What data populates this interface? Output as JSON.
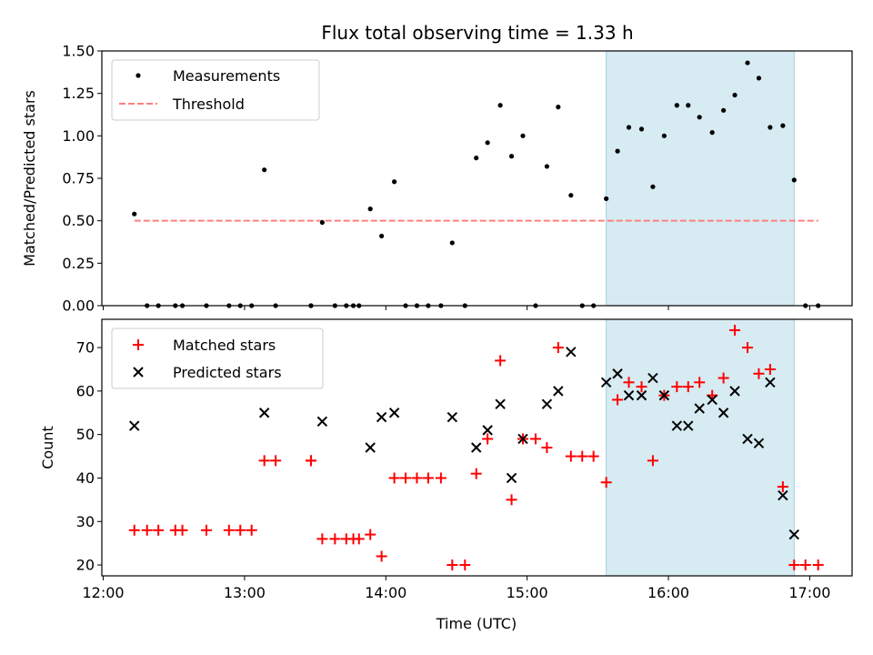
{
  "chart_data": [
    {
      "type": "scatter",
      "title": "Flux total observing time = 1.33 h",
      "xlabel": "",
      "ylabel": "Matched/Predicted stars",
      "xlim_hours": [
        11.99,
        17.3
      ],
      "ylim": [
        0,
        1.5
      ],
      "yticks": [
        0.0,
        0.25,
        0.5,
        0.75,
        1.0,
        1.25,
        1.5
      ],
      "ytick_labels": [
        "0.00",
        "0.25",
        "0.50",
        "0.75",
        "1.00",
        "1.25",
        "1.50"
      ],
      "shaded_region_hours": [
        15.56,
        16.89
      ],
      "threshold": {
        "value": 0.5,
        "x_range_hours": [
          12.22,
          17.06
        ],
        "color": "#ff7f7f"
      },
      "legend": {
        "position": "top-left",
        "entries": [
          "Measurements",
          "Threshold"
        ]
      },
      "series": [
        {
          "name": "Measurements",
          "color": "#000000",
          "marker": "dot",
          "x": [
            12.22,
            12.31,
            12.39,
            12.51,
            12.56,
            12.73,
            12.89,
            12.97,
            13.05,
            13.14,
            13.22,
            13.47,
            13.47,
            13.55,
            13.64,
            13.72,
            13.77,
            13.81,
            13.89,
            13.97,
            14.06,
            14.14,
            14.22,
            14.3,
            14.39,
            14.47,
            14.56,
            14.64,
            14.72,
            14.81,
            14.89,
            14.97,
            15.06,
            15.14,
            15.22,
            15.31,
            15.39,
            15.47,
            15.56,
            15.64,
            15.72,
            15.81,
            15.89,
            15.97,
            16.06,
            16.14,
            16.22,
            16.31,
            16.39,
            16.47,
            16.56,
            16.64,
            16.72,
            16.81,
            16.89,
            16.97,
            17.06
          ],
          "values": [
            0.54,
            0,
            0,
            0,
            0,
            0,
            0,
            0,
            0,
            0.8,
            0,
            0,
            0,
            0.49,
            0,
            0,
            0,
            0,
            0.57,
            0.41,
            0.73,
            0,
            0,
            0,
            0,
            0.37,
            0,
            0.87,
            0.96,
            1.18,
            0.88,
            1.0,
            0,
            0.82,
            1.17,
            0.65,
            0,
            0,
            0.63,
            0.91,
            1.05,
            1.04,
            0.7,
            1.0,
            1.18,
            1.18,
            1.11,
            1.02,
            1.15,
            1.24,
            1.43,
            1.34,
            1.05,
            1.06,
            0.74,
            0,
            0
          ]
        }
      ],
      "xticks_hours": [
        12,
        13,
        14,
        15,
        16,
        17
      ]
    },
    {
      "type": "scatter",
      "title": "",
      "xlabel": "Time (UTC)",
      "ylabel": "Count",
      "xlim_hours": [
        11.99,
        17.3
      ],
      "ylim": [
        17.5,
        76.5
      ],
      "yticks": [
        20,
        30,
        40,
        50,
        60,
        70
      ],
      "ytick_labels": [
        "20",
        "30",
        "40",
        "50",
        "60",
        "70"
      ],
      "xticks_hours": [
        12,
        13,
        14,
        15,
        16,
        17
      ],
      "xtick_labels": [
        "12:00",
        "13:00",
        "14:00",
        "15:00",
        "16:00",
        "17:00"
      ],
      "shaded_region_hours": [
        15.56,
        16.89
      ],
      "legend": {
        "position": "top-left",
        "entries": [
          "Matched stars",
          "Predicted stars"
        ]
      },
      "series": [
        {
          "name": "Matched stars",
          "color": "#ff0000",
          "marker": "plus",
          "x": [
            12.22,
            12.31,
            12.39,
            12.51,
            12.56,
            12.73,
            12.89,
            12.97,
            13.05,
            13.14,
            13.22,
            13.47,
            13.47,
            13.55,
            13.64,
            13.72,
            13.77,
            13.81,
            13.89,
            13.97,
            14.06,
            14.14,
            14.22,
            14.3,
            14.39,
            14.47,
            14.56,
            14.64,
            14.72,
            14.81,
            14.89,
            14.97,
            15.06,
            15.14,
            15.22,
            15.31,
            15.39,
            15.47,
            15.56,
            15.64,
            15.72,
            15.81,
            15.89,
            15.97,
            16.06,
            16.14,
            16.22,
            16.31,
            16.39,
            16.47,
            16.56,
            16.64,
            16.72,
            16.81,
            16.89,
            16.97,
            17.06
          ],
          "values": [
            28,
            28,
            28,
            28,
            28,
            28,
            28,
            28,
            28,
            44,
            44,
            44,
            44,
            26,
            26,
            26,
            26,
            26,
            27,
            22,
            40,
            40,
            40,
            40,
            40,
            20,
            20,
            41,
            49,
            67,
            35,
            49,
            49,
            47,
            70,
            45,
            45,
            45,
            39,
            58,
            62,
            61,
            44,
            59,
            61,
            61,
            62,
            59,
            63,
            74,
            70,
            64,
            65,
            38,
            20,
            20,
            20
          ]
        },
        {
          "name": "Predicted stars",
          "color": "#000000",
          "marker": "x",
          "x": [
            12.22,
            13.14,
            13.55,
            13.89,
            13.97,
            14.06,
            14.47,
            14.64,
            14.72,
            14.81,
            14.89,
            14.97,
            15.14,
            15.22,
            15.31,
            15.56,
            15.64,
            15.72,
            15.81,
            15.89,
            15.97,
            16.06,
            16.14,
            16.22,
            16.31,
            16.39,
            16.47,
            16.56,
            16.64,
            16.72,
            16.81,
            16.89
          ],
          "values": [
            52,
            55,
            53,
            47,
            54,
            55,
            54,
            47,
            51,
            57,
            40,
            49,
            57,
            60,
            69,
            62,
            64,
            59,
            59,
            63,
            59,
            52,
            52,
            56,
            58,
            55,
            60,
            49,
            48,
            62,
            36,
            27
          ]
        }
      ]
    }
  ]
}
